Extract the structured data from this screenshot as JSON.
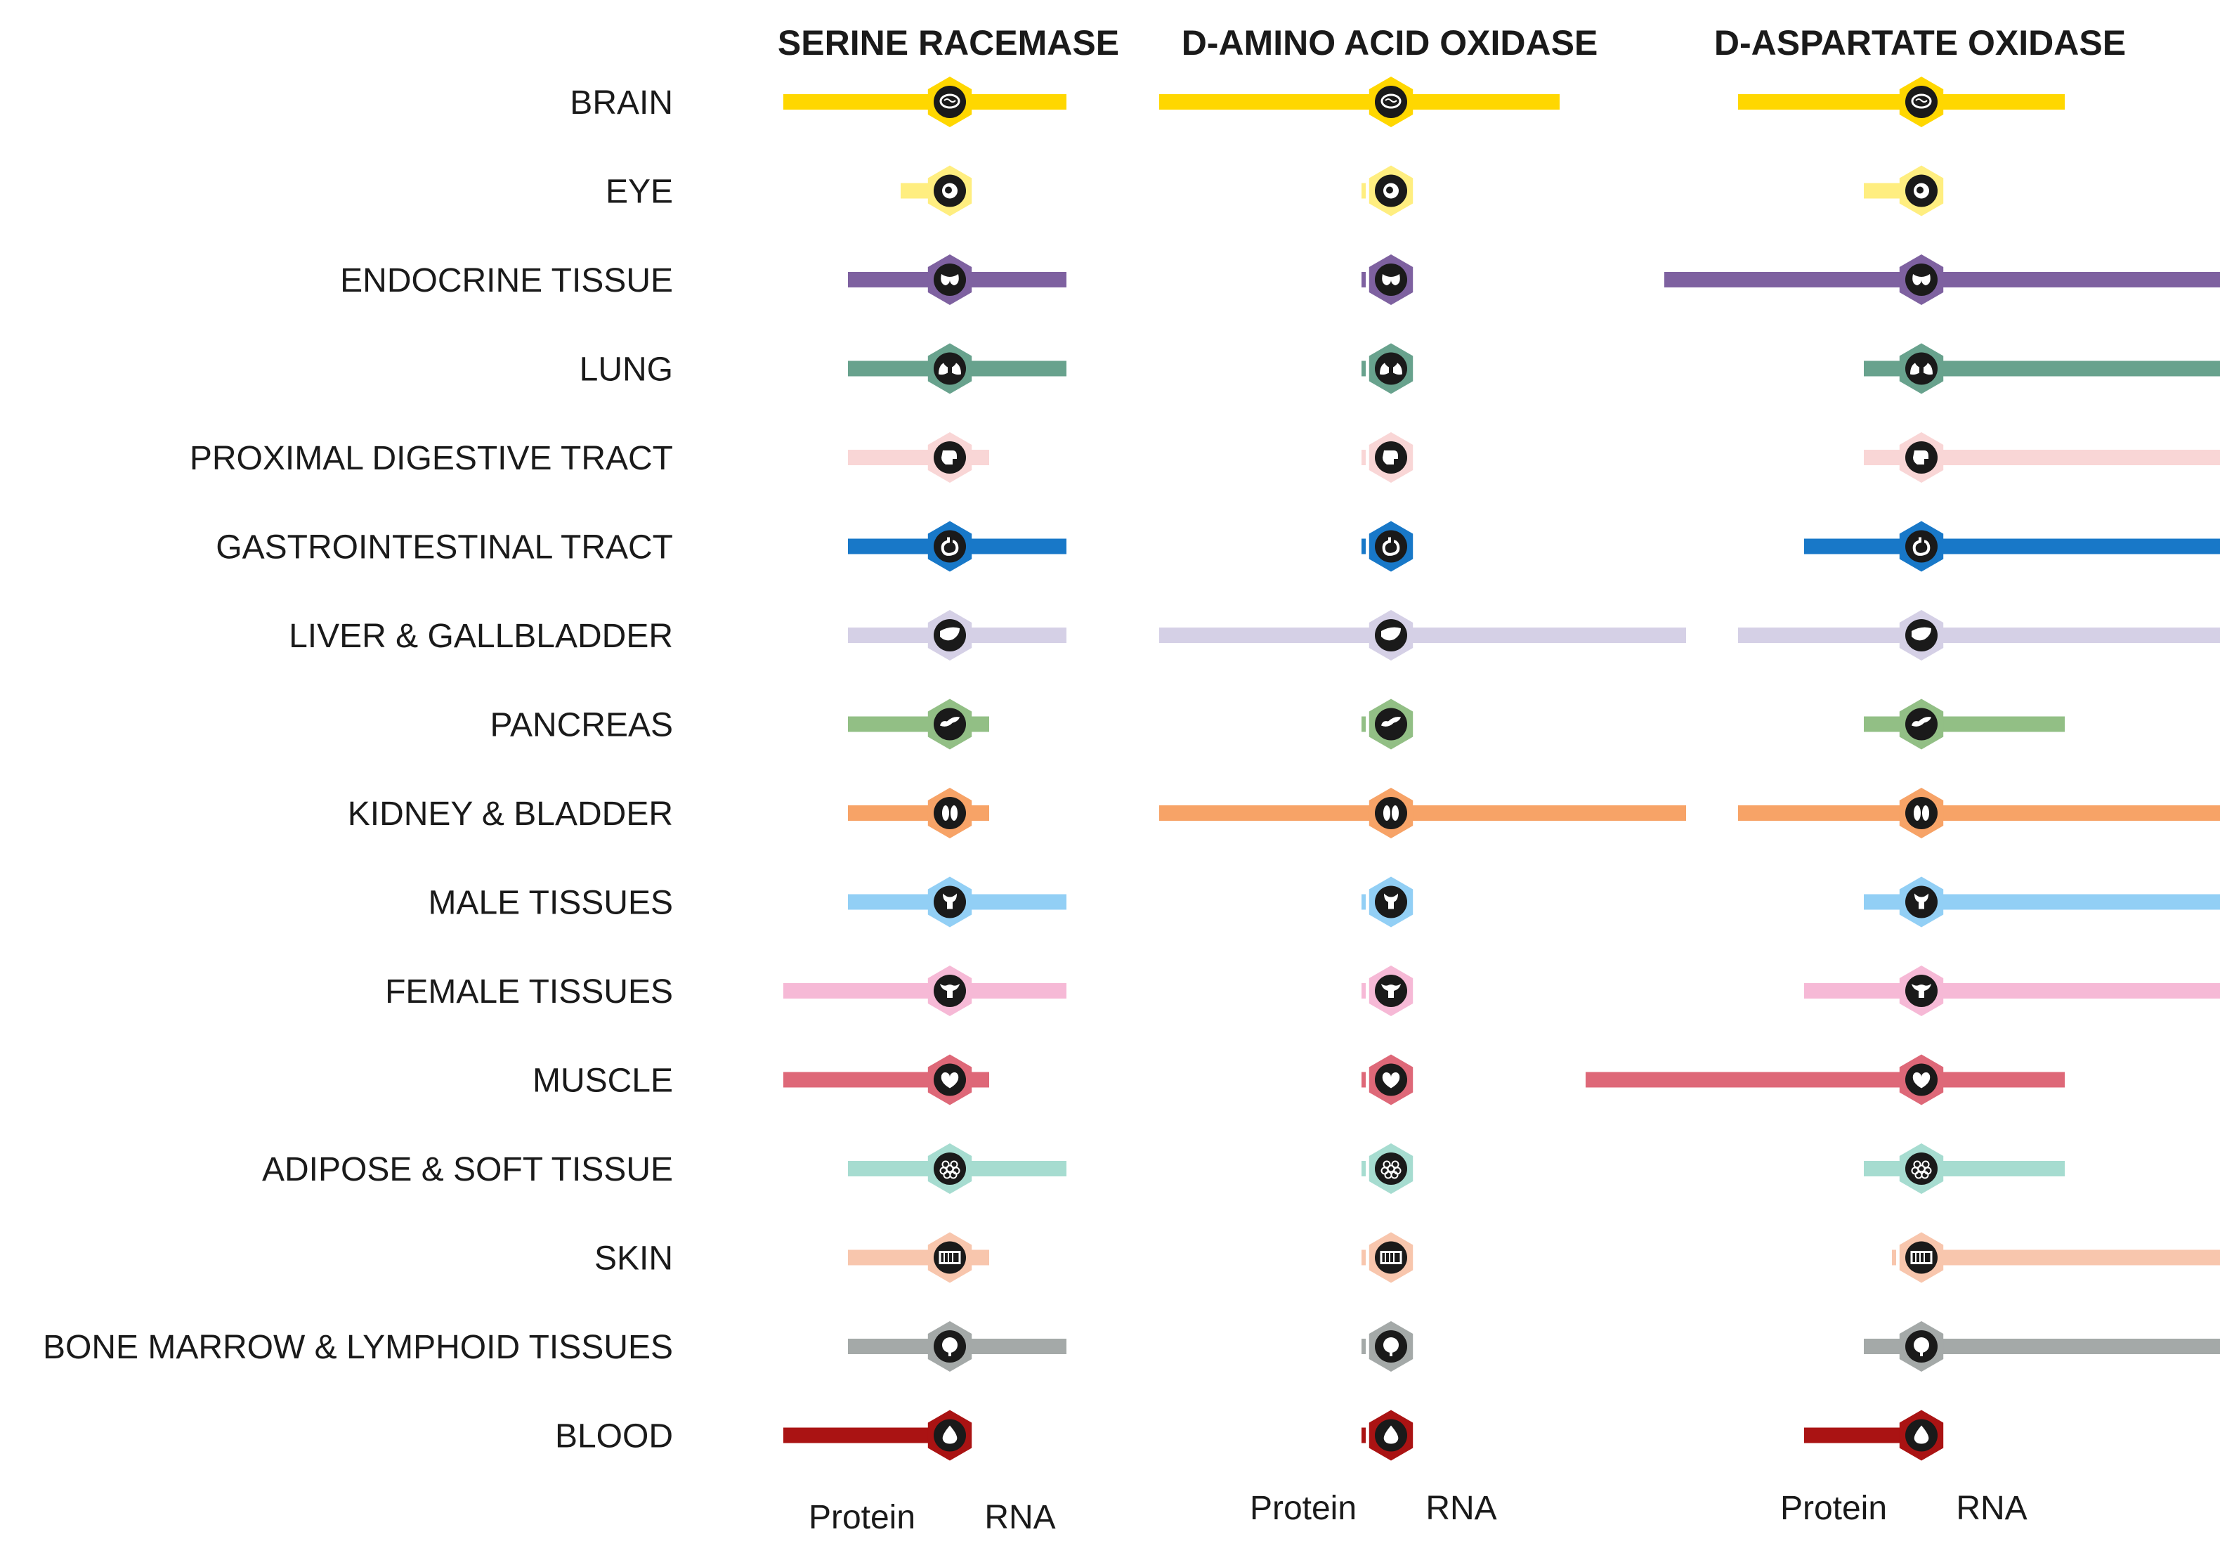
{
  "chart_data": {
    "type": "bar",
    "layout": "diverging",
    "panels": [
      "SERINE RACEMASE",
      "D-AMINO ACID OXIDASE",
      "D-ASPARTATE OXIDASE"
    ],
    "left_label": "Protein",
    "right_label": "RNA",
    "categories": [
      "BRAIN",
      "EYE",
      "ENDOCRINE TISSUE",
      "LUNG",
      "PROXIMAL DIGESTIVE TRACT",
      "GASTROINTESTINAL TRACT",
      "LIVER & GALLBLADDER",
      "PANCREAS",
      "KIDNEY & BLADDER",
      "MALE TISSUES",
      "FEMALE TISSUES",
      "MUSCLE",
      "ADIPOSE & SOFT TISSUE",
      "SKIN",
      "BONE MARROW & LYMPHOID TISSUES",
      "BLOOD"
    ],
    "icons": [
      "brain-icon",
      "eye-icon",
      "thyroid-icon",
      "lungs-icon",
      "mouth-icon",
      "stomach-icon",
      "liver-icon",
      "pancreas-icon",
      "kidney-icon",
      "male-tissue-icon",
      "uterus-icon",
      "heart-muscle-icon",
      "adipose-icon",
      "skin-icon",
      "lymph-node-icon",
      "blood-drop-icon"
    ],
    "colors": [
      "#FFD700",
      "#FFEE80",
      "#7E61A0",
      "#68A28D",
      "#F9D6D6",
      "#1878C8",
      "#D5D0E6",
      "#92BF85",
      "#F7A367",
      "#92CFF5",
      "#F6B9D6",
      "#DE6878",
      "#A6DCD0",
      "#F8C6AD",
      "#A4A9A8",
      "#AA1313"
    ],
    "series": [
      {
        "protein": [
          3,
          1,
          2,
          2,
          2,
          2,
          2,
          2,
          2,
          2,
          3,
          3,
          2,
          2,
          2,
          3
        ],
        "rna": [
          3,
          0,
          3,
          3,
          1,
          3,
          3,
          1,
          1,
          3,
          3,
          1,
          3,
          1,
          3,
          0
        ]
      },
      {
        "protein": [
          3,
          0,
          0,
          0,
          0,
          0,
          3,
          0,
          3,
          0,
          0,
          0,
          0,
          0,
          0,
          0
        ],
        "rna": [
          3,
          0,
          0,
          0,
          0,
          0,
          5,
          0,
          5,
          0,
          0,
          0,
          0,
          0,
          0,
          0
        ]
      },
      {
        "protein": [
          3,
          1,
          4,
          1,
          1,
          2,
          3,
          1,
          3,
          1,
          2,
          5,
          1,
          0,
          1,
          2
        ],
        "rna": [
          3,
          0,
          5,
          5,
          5,
          5,
          5,
          3,
          5,
          5,
          5,
          3,
          3,
          5,
          5,
          0
        ]
      }
    ]
  }
}
